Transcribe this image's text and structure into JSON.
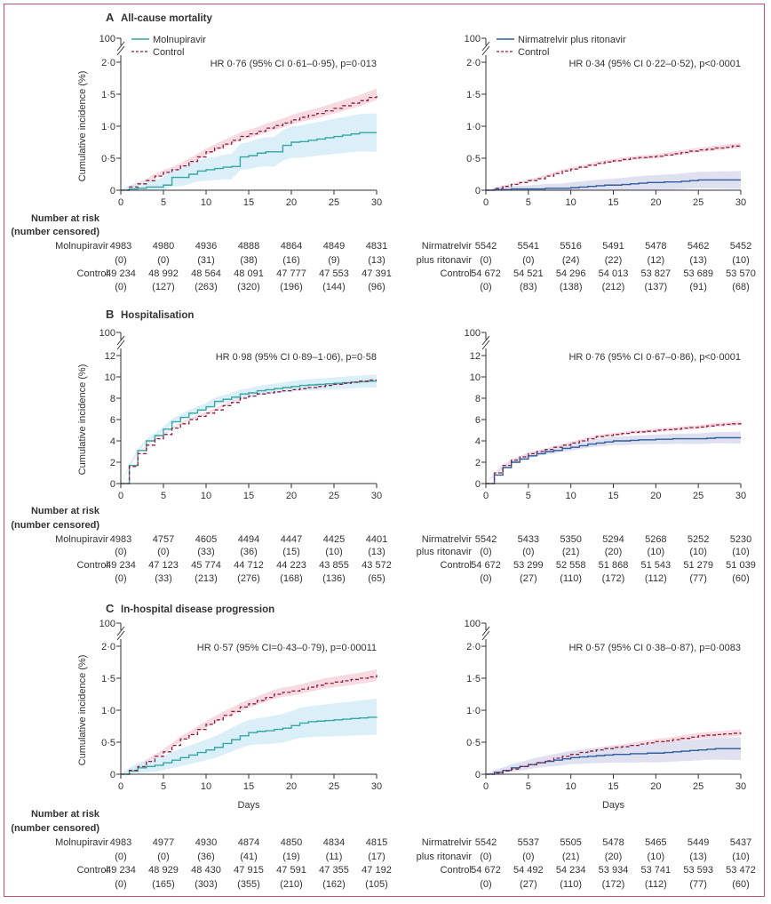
{
  "colors": {
    "molnupiravir": "#36a7a4",
    "molnupiravir_band": "#d3ecf7",
    "nirmatrelvir": "#2f5d9e",
    "nirmatrelvir_band": "#d9dcef",
    "control": "#8a1f40",
    "control_band": "#f7d3dc",
    "frame": "#c4516e"
  },
  "y_axis_label": "Cumulative incidence (%)",
  "x_axis_label": "Days",
  "risk_header": [
    "Number at risk",
    "(number censored)"
  ],
  "chart_data": [
    {
      "type": "line",
      "panel": "A",
      "title": "All-cause mortality",
      "xlabel": "",
      "ylabel": "Cumulative incidence (%)",
      "xlim": [
        0,
        30
      ],
      "xticks": [
        "0",
        "5",
        "10",
        "15",
        "20",
        "25",
        "30"
      ],
      "ylim": [
        0,
        2.0
      ],
      "yticks": [
        {
          "v": 0,
          "label": "0"
        },
        {
          "v": 0.5,
          "label": "0·5"
        },
        {
          "v": 1.0,
          "label": "1·0"
        },
        {
          "v": 1.5,
          "label": "1·5"
        },
        {
          "v": 2.0,
          "label": "2·0"
        }
      ],
      "axis_break_label": "100",
      "legend_shown": true,
      "subplots": [
        {
          "hr_text": "HR 0·76 (95% CI 0·61–0·95), p=0·013",
          "treatment": {
            "key": "molnupiravir",
            "legend": "Molnupiravir",
            "risk_label": [
              "Molnupiravir",
              ""
            ],
            "values": [
              0,
              0.02,
              0.03,
              0.05,
              0.05,
              0.08,
              0.2,
              0.2,
              0.25,
              0.3,
              0.32,
              0.34,
              0.36,
              0.37,
              0.52,
              0.54,
              0.58,
              0.6,
              0.6,
              0.7,
              0.75,
              0.76,
              0.78,
              0.8,
              0.82,
              0.84,
              0.86,
              0.88,
              0.9,
              0.9,
              0.9
            ],
            "ci_halfwidth_day30": 0.3,
            "at_risk": [
              "4983",
              "4980",
              "4936",
              "4888",
              "4864",
              "4849",
              "4831"
            ],
            "censored": [
              "(0)",
              "(0)",
              "(31)",
              "(38)",
              "(16)",
              "(9)",
              "(13)"
            ]
          },
          "control": {
            "key": "control",
            "legend": "Control",
            "risk_label": [
              "Control"
            ],
            "values": [
              0,
              0.05,
              0.1,
              0.15,
              0.22,
              0.28,
              0.32,
              0.38,
              0.45,
              0.52,
              0.6,
              0.66,
              0.72,
              0.78,
              0.84,
              0.88,
              0.92,
              0.97,
              1.01,
              1.05,
              1.1,
              1.14,
              1.17,
              1.2,
              1.24,
              1.28,
              1.32,
              1.36,
              1.4,
              1.45,
              1.5
            ],
            "ci_halfwidth_day30": 0.09,
            "at_risk": [
              "49 234",
              "48 992",
              "48 564",
              "48 091",
              "47 777",
              "47 553",
              "47 391"
            ],
            "censored": [
              "(0)",
              "(127)",
              "(263)",
              "(320)",
              "(196)",
              "(144)",
              "(96)"
            ]
          }
        },
        {
          "hr_text": "HR 0·34 (95% CI 0·22–0·52), p<0·0001",
          "treatment": {
            "key": "nirmatrelvir",
            "legend": "Nirmatrelvir plus ritonavir",
            "risk_label": [
              "Nirmatrelvir",
              "plus ritonavir"
            ],
            "values": [
              0,
              0.01,
              0.01,
              0.02,
              0.02,
              0.02,
              0.02,
              0.03,
              0.03,
              0.03,
              0.04,
              0.05,
              0.06,
              0.07,
              0.08,
              0.08,
              0.09,
              0.1,
              0.11,
              0.12,
              0.12,
              0.13,
              0.13,
              0.14,
              0.15,
              0.16,
              0.16,
              0.16,
              0.16,
              0.16,
              0.16
            ],
            "ci_halfwidth_day30": 0.14,
            "at_risk": [
              "5542",
              "5541",
              "5516",
              "5491",
              "5478",
              "5462",
              "5452"
            ],
            "censored": [
              "(0)",
              "(0)",
              "(24)",
              "(22)",
              "(12)",
              "(13)",
              "(10)"
            ]
          },
          "control": {
            "key": "control",
            "legend": "Control",
            "risk_label": [
              "Control"
            ],
            "values": [
              0,
              0.03,
              0.06,
              0.09,
              0.12,
              0.15,
              0.18,
              0.22,
              0.26,
              0.3,
              0.33,
              0.36,
              0.39,
              0.42,
              0.44,
              0.46,
              0.48,
              0.5,
              0.51,
              0.52,
              0.53,
              0.55,
              0.57,
              0.59,
              0.61,
              0.63,
              0.64,
              0.66,
              0.67,
              0.69,
              0.7
            ],
            "ci_halfwidth_day30": 0.04,
            "at_risk": [
              "54 672",
              "54 521",
              "54 296",
              "54 013",
              "53 827",
              "53 689",
              "53 570"
            ],
            "censored": [
              "(0)",
              "(83)",
              "(138)",
              "(212)",
              "(137)",
              "(91)",
              "(68)"
            ]
          }
        }
      ]
    },
    {
      "type": "line",
      "panel": "B",
      "title": "Hospitalisation",
      "xlabel": "",
      "ylabel": "Cumulative incidence (%)",
      "xlim": [
        0,
        30
      ],
      "xticks": [
        "0",
        "5",
        "10",
        "15",
        "20",
        "25",
        "30"
      ],
      "ylim": [
        0,
        12
      ],
      "yticks": [
        {
          "v": 0,
          "label": "0"
        },
        {
          "v": 2,
          "label": "2"
        },
        {
          "v": 4,
          "label": "4"
        },
        {
          "v": 6,
          "label": "6"
        },
        {
          "v": 8,
          "label": "8"
        },
        {
          "v": 10,
          "label": "10"
        },
        {
          "v": 12,
          "label": "12"
        }
      ],
      "axis_break_label": "100",
      "legend_shown": false,
      "subplots": [
        {
          "hr_text": "HR 0·98 (95% CI 0·89–1·06), p=0·58",
          "treatment": {
            "key": "molnupiravir",
            "risk_label": [
              "Molnupiravir",
              ""
            ],
            "values": [
              0,
              1.7,
              3.1,
              4.0,
              4.5,
              5.1,
              5.8,
              6.2,
              6.6,
              6.9,
              7.2,
              7.7,
              7.9,
              8.1,
              8.4,
              8.5,
              8.7,
              8.8,
              8.9,
              9.0,
              9.1,
              9.2,
              9.25,
              9.3,
              9.35,
              9.4,
              9.45,
              9.5,
              9.55,
              9.6,
              9.6
            ],
            "ci_halfwidth_day30": 0.6,
            "at_risk": [
              "4983",
              "4757",
              "4605",
              "4494",
              "4447",
              "4425",
              "4401"
            ],
            "censored": [
              "(0)",
              "(0)",
              "(33)",
              "(36)",
              "(15)",
              "(10)",
              "(13)"
            ]
          },
          "control": {
            "key": "control",
            "risk_label": [
              "Control"
            ],
            "values": [
              0,
              1.6,
              2.8,
              3.6,
              4.2,
              4.6,
              5.2,
              5.6,
              6.0,
              6.3,
              6.6,
              6.9,
              7.3,
              7.6,
              8.0,
              8.2,
              8.4,
              8.5,
              8.6,
              8.7,
              8.8,
              8.9,
              9.0,
              9.1,
              9.2,
              9.3,
              9.4,
              9.5,
              9.6,
              9.7,
              9.7
            ],
            "ci_halfwidth_day30": 0.2,
            "at_risk": [
              "49 234",
              "47 123",
              "45 774",
              "44 712",
              "44 223",
              "43 855",
              "43 572"
            ],
            "censored": [
              "(0)",
              "(33)",
              "(213)",
              "(276)",
              "(168)",
              "(136)",
              "(65)"
            ]
          }
        },
        {
          "hr_text": "HR 0·76 (95% CI 0·67–0·86), p<0·0001",
          "treatment": {
            "key": "nirmatrelvir",
            "risk_label": [
              "Nirmatrelvir",
              "plus ritonavir"
            ],
            "values": [
              0,
              0.8,
              1.5,
              2.0,
              2.3,
              2.6,
              2.8,
              3.0,
              3.1,
              3.3,
              3.4,
              3.55,
              3.7,
              3.8,
              3.9,
              4.0,
              4.0,
              4.05,
              4.1,
              4.1,
              4.15,
              4.15,
              4.2,
              4.2,
              4.2,
              4.2,
              4.25,
              4.3,
              4.3,
              4.3,
              4.3
            ],
            "ci_halfwidth_day30": 0.55,
            "at_risk": [
              "5542",
              "5433",
              "5350",
              "5294",
              "5268",
              "5252",
              "5230"
            ],
            "censored": [
              "(0)",
              "(0)",
              "(21)",
              "(20)",
              "(10)",
              "(10)",
              "(10)"
            ]
          },
          "control": {
            "key": "control",
            "risk_label": [
              "Control"
            ],
            "values": [
              0,
              1.0,
              1.7,
              2.2,
              2.5,
              2.8,
              3.0,
              3.2,
              3.4,
              3.6,
              3.8,
              4.0,
              4.2,
              4.4,
              4.5,
              4.6,
              4.7,
              4.8,
              4.85,
              4.9,
              5.0,
              5.05,
              5.1,
              5.2,
              5.25,
              5.3,
              5.4,
              5.5,
              5.55,
              5.6,
              5.7
            ],
            "ci_halfwidth_day30": 0.2,
            "at_risk": [
              "54 672",
              "53 299",
              "52 558",
              "51 868",
              "51 543",
              "51 279",
              "51 039"
            ],
            "censored": [
              "(0)",
              "(27)",
              "(110)",
              "(172)",
              "(112)",
              "(77)",
              "(60)"
            ]
          }
        }
      ]
    },
    {
      "type": "line",
      "panel": "C",
      "title": "In-hospital disease progression",
      "xlabel": "Days",
      "ylabel": "Cumulative incidence (%)",
      "xlim": [
        0,
        30
      ],
      "xticks": [
        "0",
        "5",
        "10",
        "15",
        "20",
        "25",
        "30"
      ],
      "ylim": [
        0,
        2.0
      ],
      "yticks": [
        {
          "v": 0,
          "label": "0"
        },
        {
          "v": 0.5,
          "label": "0·5"
        },
        {
          "v": 1.0,
          "label": "1·0"
        },
        {
          "v": 1.5,
          "label": "1·5"
        },
        {
          "v": 2.0,
          "label": "2·0"
        }
      ],
      "axis_break_label": "100",
      "legend_shown": false,
      "subplots": [
        {
          "hr_text": "HR 0·57 (95% CI=0·43–0·79), p=0·00011",
          "treatment": {
            "key": "molnupiravir",
            "risk_label": [
              "Molnupiravir",
              ""
            ],
            "values": [
              0,
              0.05,
              0.1,
              0.12,
              0.14,
              0.18,
              0.22,
              0.26,
              0.3,
              0.34,
              0.38,
              0.42,
              0.48,
              0.54,
              0.6,
              0.65,
              0.67,
              0.68,
              0.7,
              0.72,
              0.76,
              0.8,
              0.82,
              0.83,
              0.84,
              0.85,
              0.86,
              0.87,
              0.88,
              0.89,
              0.9
            ],
            "ci_halfwidth_day30": 0.28,
            "at_risk": [
              "4983",
              "4977",
              "4930",
              "4874",
              "4850",
              "4834",
              "4815"
            ],
            "censored": [
              "(0)",
              "(0)",
              "(36)",
              "(41)",
              "(19)",
              "(11)",
              "(17)"
            ]
          },
          "control": {
            "key": "control",
            "risk_label": [
              "Control"
            ],
            "values": [
              0,
              0.06,
              0.12,
              0.2,
              0.28,
              0.35,
              0.45,
              0.55,
              0.62,
              0.7,
              0.78,
              0.85,
              0.92,
              0.98,
              1.05,
              1.1,
              1.15,
              1.2,
              1.25,
              1.28,
              1.3,
              1.33,
              1.36,
              1.39,
              1.42,
              1.44,
              1.46,
              1.48,
              1.5,
              1.52,
              1.55
            ],
            "ci_halfwidth_day30": 0.09,
            "at_risk": [
              "49 234",
              "48 929",
              "48 430",
              "47 915",
              "47 591",
              "47 355",
              "47 192"
            ],
            "censored": [
              "(0)",
              "(165)",
              "(303)",
              "(355)",
              "(210)",
              "(162)",
              "(105)"
            ]
          }
        },
        {
          "hr_text": "HR 0·57 (95% CI 0·38–0·87), p=0·0083",
          "treatment": {
            "key": "nirmatrelvir",
            "risk_label": [
              "Nirmatrelvir",
              "plus ritonavir"
            ],
            "values": [
              0,
              0.03,
              0.06,
              0.1,
              0.12,
              0.15,
              0.18,
              0.2,
              0.22,
              0.24,
              0.26,
              0.27,
              0.28,
              0.29,
              0.3,
              0.31,
              0.31,
              0.32,
              0.32,
              0.33,
              0.33,
              0.34,
              0.35,
              0.36,
              0.37,
              0.38,
              0.39,
              0.4,
              0.4,
              0.4,
              0.4
            ],
            "ci_halfwidth_day30": 0.18,
            "at_risk": [
              "5542",
              "5537",
              "5505",
              "5478",
              "5465",
              "5449",
              "5437"
            ],
            "censored": [
              "(0)",
              "(0)",
              "(21)",
              "(20)",
              "(10)",
              "(13)",
              "(10)"
            ]
          },
          "control": {
            "key": "control",
            "risk_label": [
              "Control"
            ],
            "values": [
              0,
              0.02,
              0.05,
              0.08,
              0.12,
              0.15,
              0.18,
              0.21,
              0.25,
              0.28,
              0.31,
              0.34,
              0.36,
              0.38,
              0.4,
              0.42,
              0.43,
              0.45,
              0.47,
              0.49,
              0.51,
              0.52,
              0.54,
              0.56,
              0.58,
              0.6,
              0.61,
              0.62,
              0.63,
              0.64,
              0.65
            ],
            "ci_halfwidth_day30": 0.05,
            "at_risk": [
              "54 672",
              "54 492",
              "54 234",
              "53 934",
              "53 741",
              "53 593",
              "53 472"
            ],
            "censored": [
              "(0)",
              "(27)",
              "(110)",
              "(172)",
              "(112)",
              "(77)",
              "(60)"
            ]
          }
        }
      ]
    }
  ]
}
